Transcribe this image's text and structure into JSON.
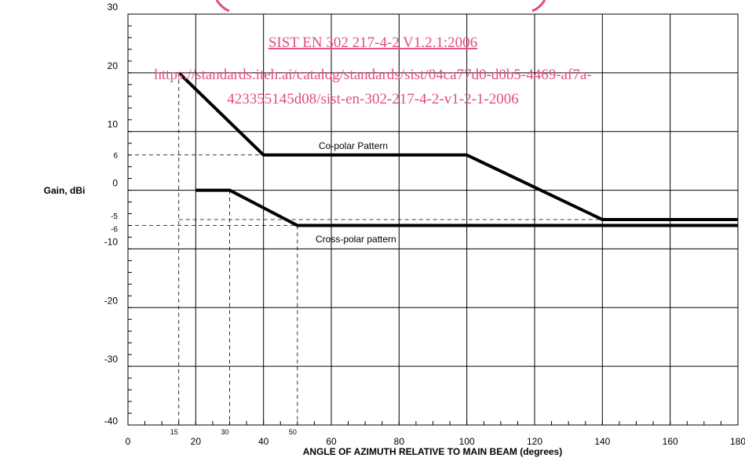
{
  "chart_data": {
    "type": "line",
    "xlabel": "ANGLE OF AZIMUTH RELATIVE TO MAIN BEAM (degrees)",
    "ylabel": "Gain, dBi",
    "xlim": [
      0,
      180
    ],
    "ylim": [
      -40,
      30
    ],
    "x_ticks": [
      0,
      20,
      40,
      60,
      80,
      100,
      120,
      140,
      160,
      180
    ],
    "y_ticks": [
      30,
      20,
      10,
      0,
      -10,
      -20,
      -30,
      -40
    ],
    "x_minor_marks": [
      15,
      30,
      50
    ],
    "y_minor_marks": [
      6,
      -5,
      -6
    ],
    "grid": true,
    "series": [
      {
        "name": "Co-polar Pattern",
        "x": [
          15,
          40,
          100,
          140,
          180
        ],
        "y": [
          20,
          6,
          6,
          -5,
          -5
        ]
      },
      {
        "name": "Cross-polar pattern",
        "x": [
          20,
          30,
          50,
          180
        ],
        "y": [
          0,
          0,
          -6,
          -6
        ]
      }
    ],
    "reference_lines": [
      {
        "points": [
          [
            15,
            20
          ],
          [
            15,
            -40
          ]
        ]
      },
      {
        "points": [
          [
            0,
            6
          ],
          [
            40,
            6
          ]
        ]
      },
      {
        "points": [
          [
            30,
            0
          ],
          [
            30,
            -40
          ]
        ]
      },
      {
        "points": [
          [
            50,
            -6
          ],
          [
            50,
            -40
          ]
        ]
      },
      {
        "points": [
          [
            15,
            -5
          ],
          [
            140,
            -5
          ]
        ]
      },
      {
        "points": [
          [
            0,
            -6
          ],
          [
            50,
            -6
          ]
        ]
      }
    ]
  },
  "watermark": {
    "line1": "SIST EN 302 217-4-2 V1.2.1:2006",
    "line2": "https://standards.iteh.ai/catalog/standards/sist/04ca77d0-d0b5-4469-af7a-",
    "line3": "423355145d08/sist-en-302-217-4-2-v1-2-1-2006"
  }
}
